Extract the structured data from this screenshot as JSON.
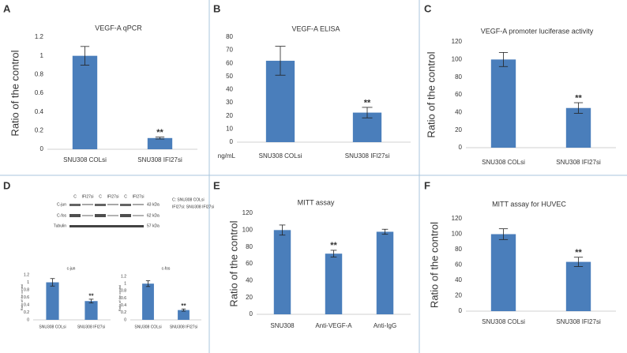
{
  "panels": [
    "A",
    "B",
    "C",
    "D",
    "E",
    "F"
  ],
  "blot": {
    "lanes": [
      "C",
      "IFI27si",
      "C",
      "IFI27si",
      "C",
      "IFI27si"
    ],
    "rows": [
      {
        "name": "C-jun",
        "size": "43 kDa"
      },
      {
        "name": "C-fos",
        "size": "62 kDa"
      },
      {
        "name": "Tubulin",
        "size": "57 kDa"
      }
    ],
    "legend": [
      "C: SNU308 COLsi",
      "IFI27si: SNU308 IFI27si"
    ]
  },
  "chart_data": [
    {
      "type": "bar",
      "title": "VEGF-A qPCR",
      "y_label": "Ratio of the control",
      "color": "#4a7ebb",
      "categories": [
        "SNU308 COLsi",
        "SNU308 IFI27si"
      ],
      "values": [
        1.0,
        0.12
      ],
      "errors": [
        0.1,
        0.01
      ],
      "annotations": [
        null,
        "**"
      ],
      "ylim": [
        0,
        1.2
      ],
      "yticks": [
        0,
        0.2,
        0.4,
        0.6,
        0.8,
        1,
        1.2
      ]
    },
    {
      "type": "bar",
      "title": "VEGF-A ELISA",
      "y_unit": "ng/mL",
      "color": "#4a7ebb",
      "categories": [
        "SNU308 COLsi",
        "SNU308 IFI27si"
      ],
      "values": [
        62,
        22.5
      ],
      "errors": [
        11,
        4
      ],
      "annotations": [
        null,
        "**"
      ],
      "ylim": [
        0,
        80
      ],
      "yticks": [
        0,
        10,
        20,
        30,
        40,
        50,
        60,
        70,
        80
      ]
    },
    {
      "type": "bar",
      "title": "VEGF-A promoter luciferase activity",
      "y_label": "Ratio of the control",
      "color": "#4a7ebb",
      "categories": [
        "SNU308 COLsi",
        "SNU308 IFI27si"
      ],
      "values": [
        100,
        45
      ],
      "errors": [
        8,
        6
      ],
      "annotations": [
        null,
        "**"
      ],
      "ylim": [
        0,
        120
      ],
      "yticks": [
        0,
        20,
        40,
        60,
        80,
        100,
        120
      ]
    },
    {
      "type": "bar",
      "title": "c-jun",
      "y_label": "Ratio of the control",
      "color": "#4a7ebb",
      "categories": [
        "SNU308 COLsi",
        "SNU308 IFI27si"
      ],
      "values": [
        1.0,
        0.5
      ],
      "errors": [
        0.1,
        0.05
      ],
      "annotations": [
        null,
        "**"
      ],
      "ylim": [
        0,
        1.2
      ],
      "yticks": [
        0,
        0.2,
        0.4,
        0.6,
        0.8,
        1,
        1.2
      ]
    },
    {
      "type": "bar",
      "title": "c-fos",
      "y_label": "Ratio of the control",
      "color": "#4a7ebb",
      "categories": [
        "SNU308 COLsi",
        "SNU308 IFI27si"
      ],
      "values": [
        1.0,
        0.27
      ],
      "errors": [
        0.08,
        0.03
      ],
      "annotations": [
        null,
        "**"
      ],
      "ylim": [
        0,
        1.2
      ],
      "yticks": [
        0,
        0.2,
        0.4,
        0.6,
        0.8,
        1,
        1.2
      ]
    },
    {
      "type": "bar",
      "title": "MITT assay",
      "y_label": "Ratio of the control",
      "color": "#4a7ebb",
      "categories": [
        "SNU308",
        "Anti-VEGF-A",
        "Anti-IgG"
      ],
      "values": [
        100,
        72,
        98
      ],
      "errors": [
        6,
        4,
        3
      ],
      "annotations": [
        null,
        "**",
        null
      ],
      "ylim": [
        0,
        120
      ],
      "yticks": [
        0,
        20,
        40,
        60,
        80,
        100,
        120
      ]
    },
    {
      "type": "bar",
      "title": "MITT assay for HUVEC",
      "y_label": "Ratio of the control",
      "color": "#4a7ebb",
      "categories": [
        "SNU308 COLsi",
        "SNU308 IFI27si"
      ],
      "values": [
        100,
        64
      ],
      "errors": [
        7,
        6
      ],
      "annotations": [
        null,
        "**"
      ],
      "ylim": [
        0,
        120
      ],
      "yticks": [
        0,
        20,
        40,
        60,
        80,
        100,
        120
      ]
    }
  ]
}
